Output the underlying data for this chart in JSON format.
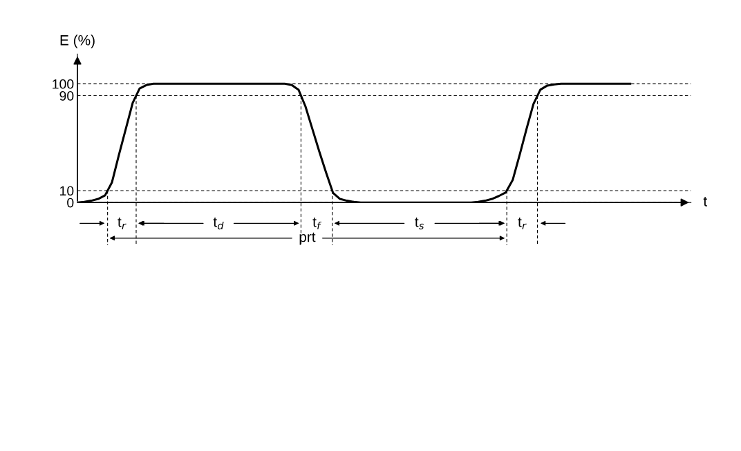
{
  "chart_data": {
    "type": "line",
    "xlabel": "t",
    "ylabel": "E (%)",
    "categories": [
      null,
      null,
      null,
      null,
      null,
      null,
      null,
      null,
      null,
      null,
      null,
      null,
      null,
      null,
      null,
      null,
      null,
      null,
      null,
      null,
      null,
      null,
      null,
      null,
      null,
      null,
      null,
      null,
      null,
      null,
      null,
      null,
      null,
      null,
      null,
      null,
      null,
      null,
      null,
      null,
      null,
      null,
      null,
      null,
      null,
      null,
      null,
      null,
      null,
      null,
      null,
      null,
      null,
      null,
      null,
      null,
      null,
      null,
      null,
      null,
      null,
      null,
      null,
      null,
      null,
      null,
      null,
      null,
      null,
      null,
      null,
      null,
      null,
      null,
      null,
      null,
      null,
      null,
      null,
      null,
      null
    ],
    "series": [
      {
        "color": "#000000",
        "values": [
          0,
          0.5,
          1.5,
          3,
          6,
          17,
          40,
          62,
          84,
          96,
          99,
          100,
          100,
          100,
          100,
          100,
          100,
          100,
          100,
          100,
          100,
          100,
          100,
          100,
          100,
          100,
          100,
          100,
          100,
          100,
          100,
          99,
          95,
          81,
          62,
          43,
          25,
          8,
          3,
          1.5,
          0.5,
          0,
          0,
          0,
          0,
          0,
          0,
          0,
          0,
          0,
          0,
          0,
          0,
          0,
          0,
          0,
          0,
          0,
          0.5,
          1.5,
          3,
          5.5,
          8.5,
          19,
          40,
          62,
          83,
          95,
          98.5,
          99.5,
          100,
          100,
          100,
          100,
          100,
          100,
          100,
          100,
          100,
          100,
          100
        ]
      }
    ],
    "ylim": [
      0,
      125
    ],
    "yticks": [
      0,
      10,
      90,
      100
    ],
    "grid": "y",
    "line_style": "solid",
    "marker": "none",
    "annotations": [
      "t$_{r}$",
      "t$_{d}$",
      "t$_{f}$",
      "t$_{s}$",
      "t$_{r}$",
      "prt"
    ]
  }
}
